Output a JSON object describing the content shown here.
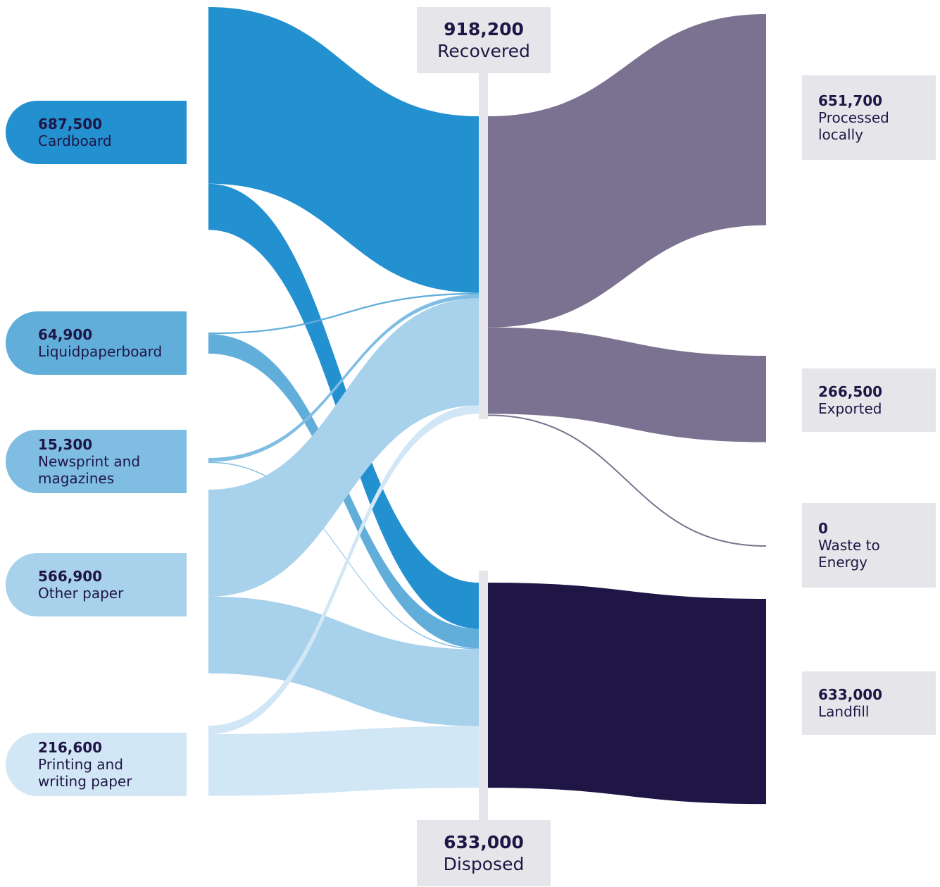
{
  "chart_data": {
    "type": "sankey",
    "sources": [
      {
        "name": "Cardboard",
        "value": 687500,
        "value_label": "687,500",
        "color": "#2390d0"
      },
      {
        "name": "Liquidpaperboard",
        "value": 64900,
        "value_label": "64,900",
        "color": "#62aedb"
      },
      {
        "name": "Newsprint and magazines",
        "value": 15300,
        "value_label": "15,300",
        "color": "#7fbde3"
      },
      {
        "name": "Other paper",
        "value": 566900,
        "value_label": "566,900",
        "color": "#a8d1eb"
      },
      {
        "name": "Printing and writing paper",
        "value": 216600,
        "value_label": "216,600",
        "color": "#d2e7f5"
      }
    ],
    "stages": [
      {
        "name": "Recovered",
        "value": 918200,
        "value_label": "918,200"
      },
      {
        "name": "Disposed",
        "value": 633000,
        "value_label": "633,000"
      }
    ],
    "destinations": [
      {
        "name": "Processed locally",
        "value": 651700,
        "value_label": "651,700",
        "stage": 0,
        "color": "#7a7290"
      },
      {
        "name": "Exported",
        "value": 266500,
        "value_label": "266,500",
        "stage": 0,
        "color": "#7a7290"
      },
      {
        "name": "Waste to Energy",
        "value": 0,
        "value_label": "0",
        "stage": 0,
        "color": "#7a7290"
      },
      {
        "name": "Landfill",
        "value": 633000,
        "value_label": "633,000",
        "stage": 1,
        "color": "#1f1646"
      }
    ],
    "links": [
      {
        "source": 0,
        "stage": 0,
        "value": 545000
      },
      {
        "source": 0,
        "stage": 1,
        "value": 142500
      },
      {
        "source": 1,
        "stage": 0,
        "value": 5000
      },
      {
        "source": 1,
        "stage": 1,
        "value": 59900
      },
      {
        "source": 2,
        "stage": 0,
        "value": 12000
      },
      {
        "source": 2,
        "stage": 1,
        "value": 3300
      },
      {
        "source": 3,
        "stage": 0,
        "value": 330000
      },
      {
        "source": 3,
        "stage": 1,
        "value": 236900
      },
      {
        "source": 4,
        "stage": 0,
        "value": 26200
      },
      {
        "source": 4,
        "stage": 1,
        "value": 190400
      }
    ]
  }
}
